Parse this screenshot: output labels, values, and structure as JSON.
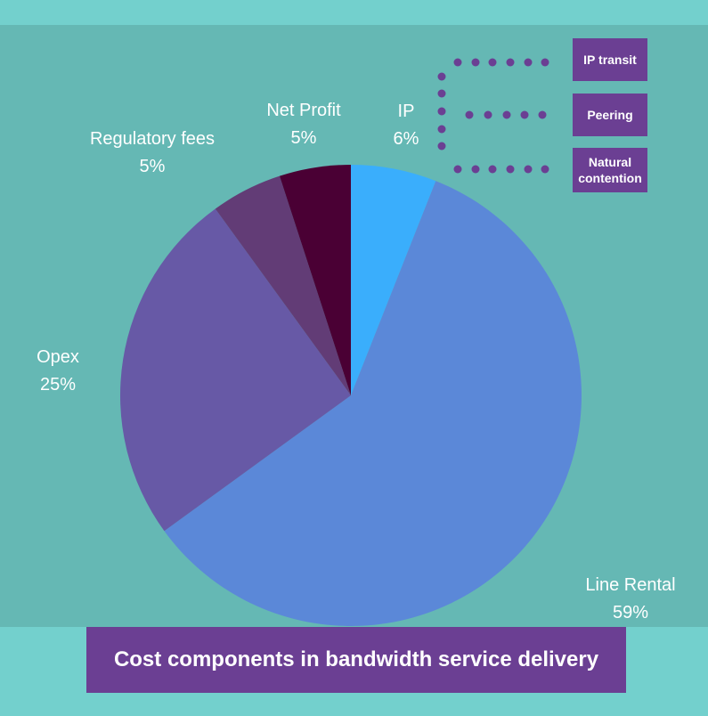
{
  "chart_data": {
    "type": "pie",
    "title": "Cost components in bandwidth service delivery",
    "slices": [
      {
        "label": "IP",
        "value": 6,
        "value_label": "6%",
        "color": "#3aaefc"
      },
      {
        "label": "Line Rental",
        "value": 59,
        "value_label": "59%",
        "color": "#5b88d8"
      },
      {
        "label": "Opex",
        "value": 25,
        "value_label": "25%",
        "color": "#6759a6"
      },
      {
        "label": "Regulatory fees",
        "value": 5,
        "value_label": "5%",
        "color": "#623c76"
      },
      {
        "label": "Net Profit",
        "value": 5,
        "value_label": "5%",
        "color": "#4a0034"
      }
    ],
    "ip_breakdown": [
      "IP transit",
      "Peering",
      "Natural contention"
    ]
  },
  "colors": {
    "background": "#73d0cd",
    "panel": "#65b8b4",
    "accent": "#6b3f93",
    "text": "#ffffff"
  }
}
